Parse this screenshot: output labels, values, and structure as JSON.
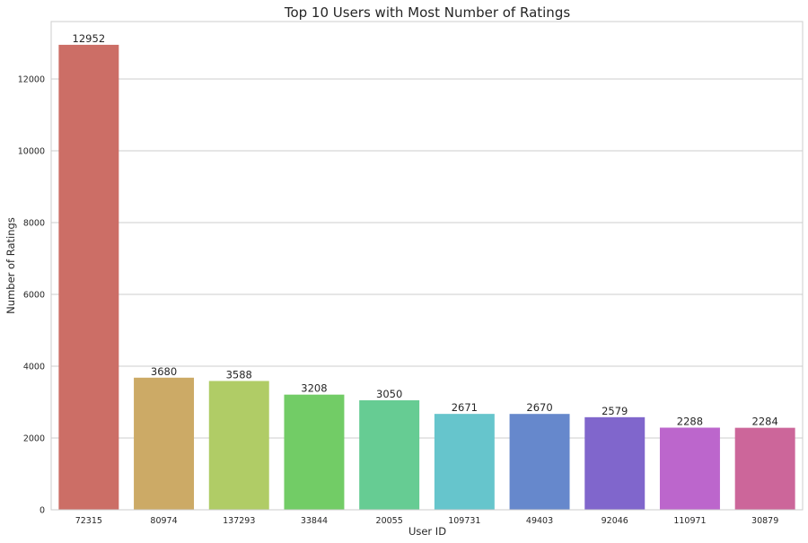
{
  "chart_data": {
    "type": "bar",
    "title": "Top 10 Users with Most Number of Ratings",
    "xlabel": "User ID",
    "ylabel": "Number of Ratings",
    "categories": [
      "72315",
      "80974",
      "137293",
      "33844",
      "20055",
      "109731",
      "49403",
      "92046",
      "110971",
      "30879"
    ],
    "values": [
      12952,
      3680,
      3588,
      3208,
      3050,
      2671,
      2670,
      2579,
      2288,
      2284
    ],
    "value_labels": [
      "12952",
      "3680",
      "3588",
      "3208",
      "3050",
      "2671",
      "2670",
      "2579",
      "2288",
      "2284"
    ],
    "yticks": [
      0,
      2000,
      4000,
      6000,
      8000,
      10000,
      12000
    ],
    "ytick_labels": [
      "0",
      "2000",
      "4000",
      "6000",
      "8000",
      "10000",
      "12000"
    ],
    "ylim": [
      0,
      13600
    ],
    "grid": "y",
    "colors": [
      "#cc6e66",
      "#ccaa66",
      "#b0cc66",
      "#72cc66",
      "#66cc93",
      "#66c5cc",
      "#6688cc",
      "#8066cc",
      "#bc66cc",
      "#cc669a"
    ]
  }
}
